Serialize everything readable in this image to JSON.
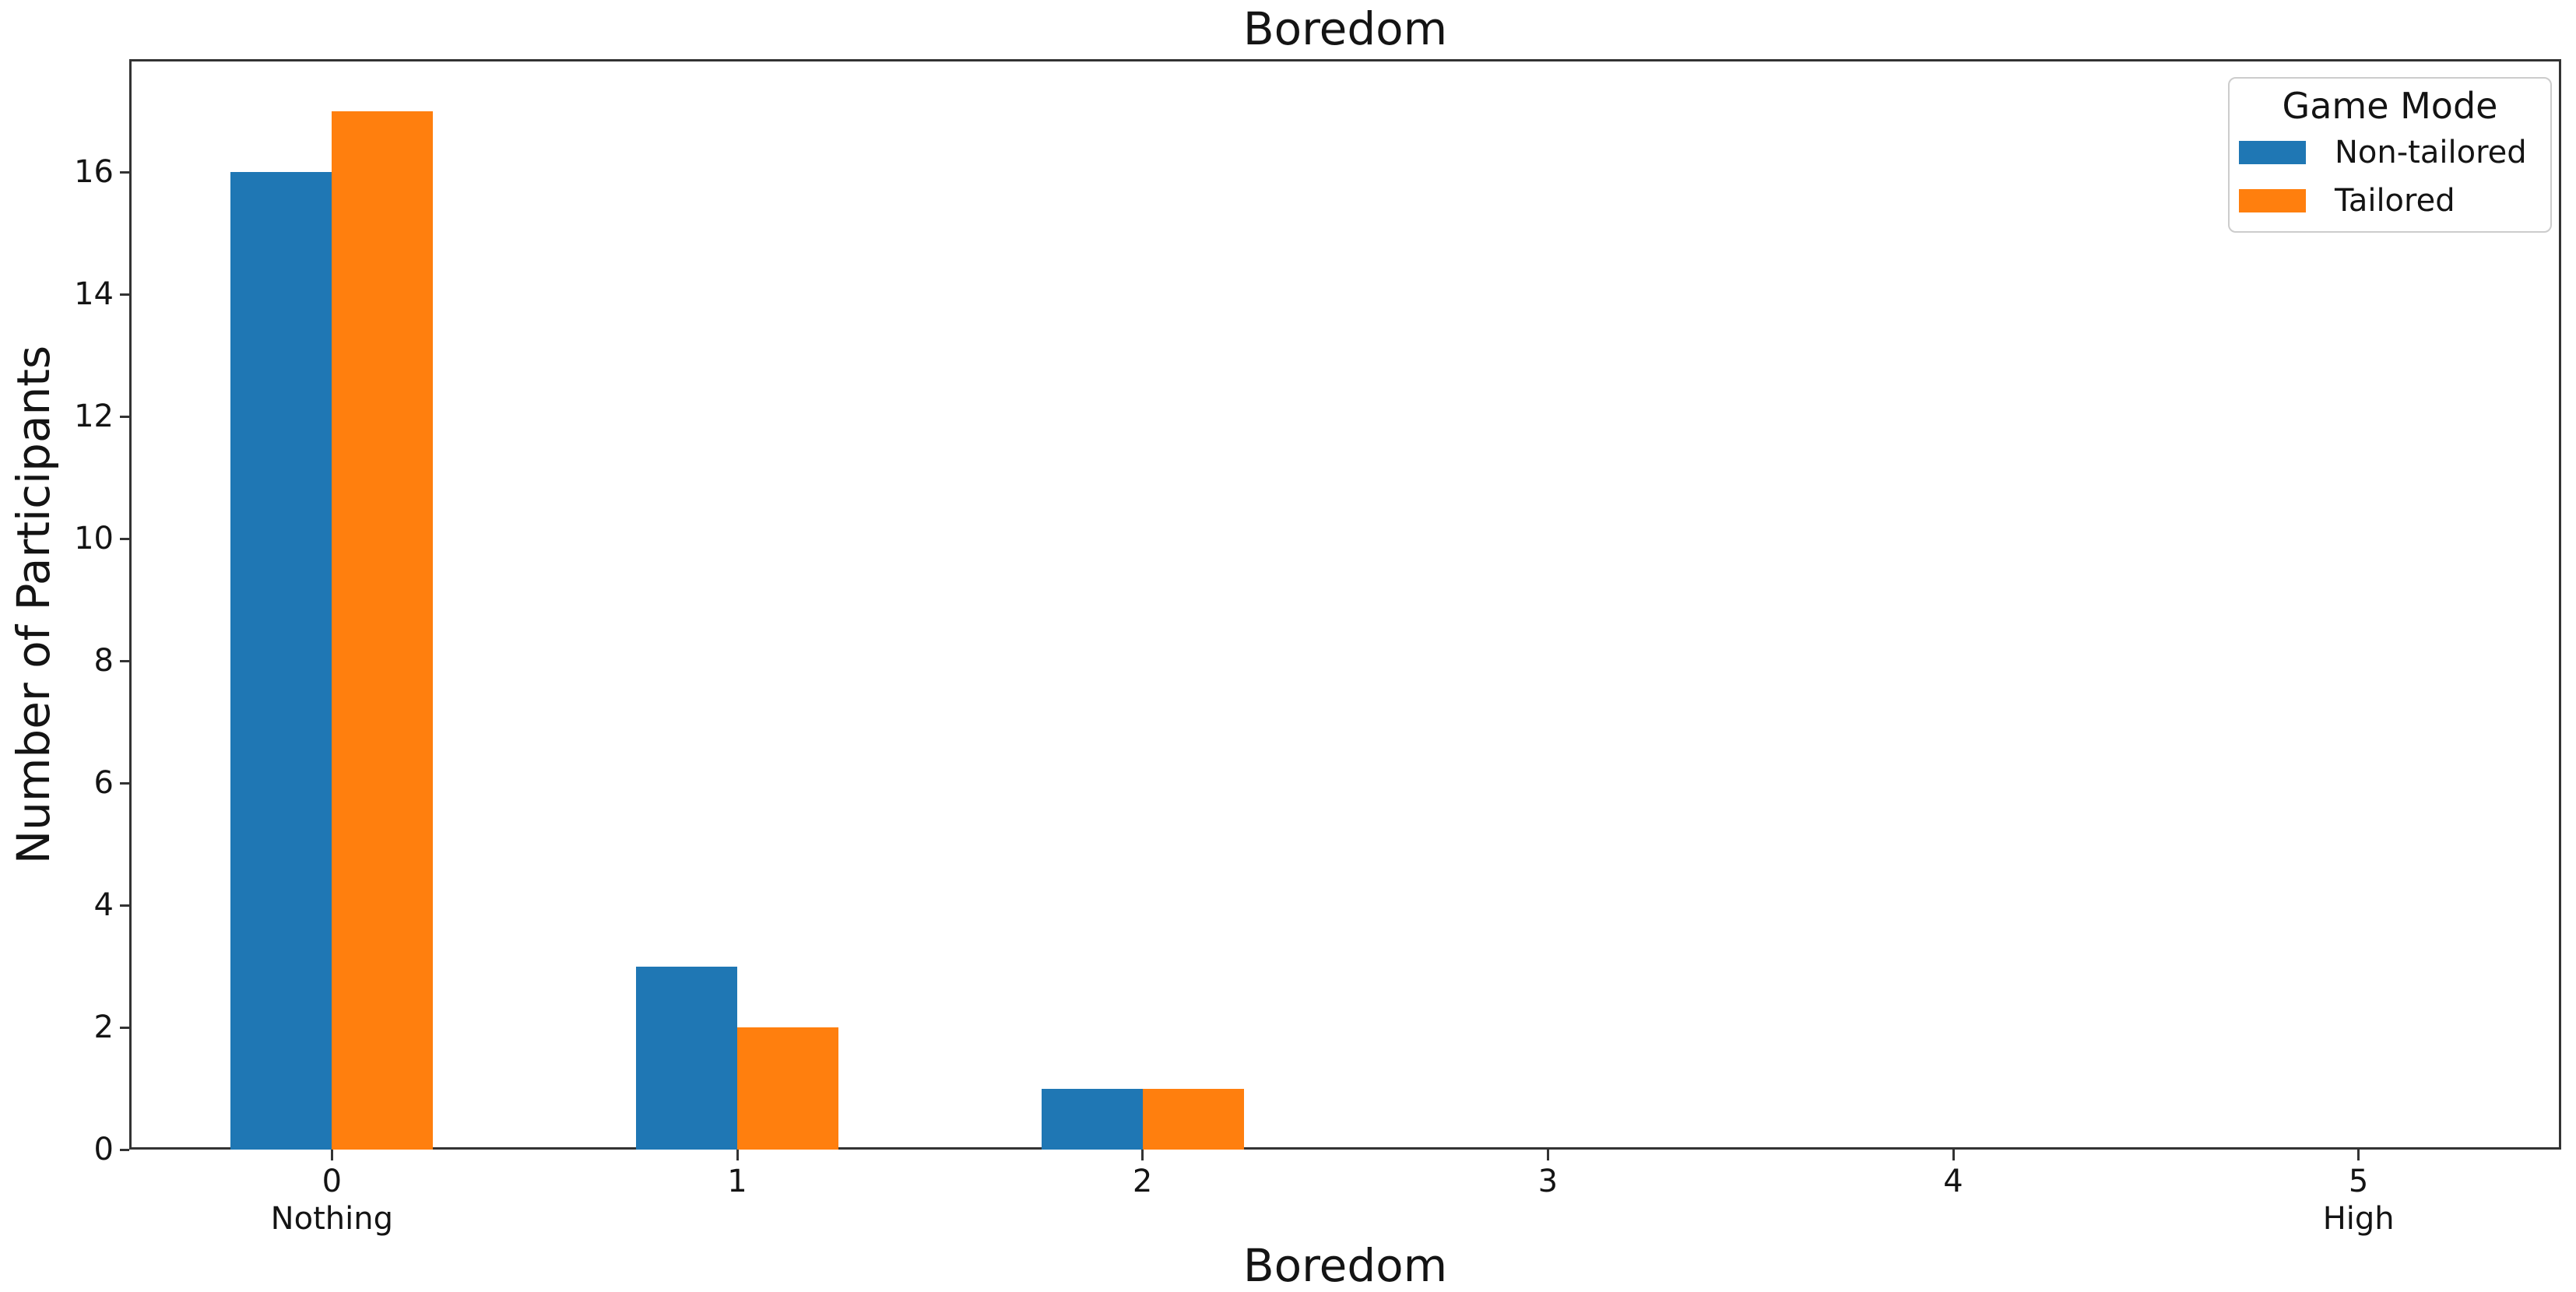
{
  "chart_data": {
    "type": "bar",
    "title": "Boredom",
    "xlabel": "Boredom",
    "ylabel": "Number of Participants",
    "categories": [
      "0",
      "1",
      "2",
      "3",
      "4",
      "5"
    ],
    "category_sublabels": [
      "Nothing",
      "",
      "",
      "",
      "",
      "High"
    ],
    "yticks": [
      0,
      2,
      4,
      6,
      8,
      10,
      12,
      14,
      16
    ],
    "ylim": [
      0,
      17.85
    ],
    "grid": false,
    "legend": {
      "title": "Game Mode",
      "position": "upper right"
    },
    "series": [
      {
        "name": "Non-tailored",
        "color": "#1f77b4",
        "values": [
          16,
          3,
          1,
          0,
          0,
          0
        ]
      },
      {
        "name": "Tailored",
        "color": "#ff7f0e",
        "values": [
          17,
          2,
          1,
          0,
          0,
          0
        ]
      }
    ],
    "colors": {
      "axis": "#333333",
      "text": "#141414"
    }
  }
}
